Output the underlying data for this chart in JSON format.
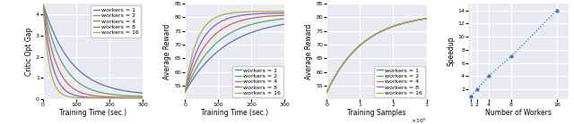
{
  "fig_width": 6.4,
  "fig_height": 1.39,
  "dpi": 100,
  "workers": [
    1,
    2,
    4,
    8,
    16
  ],
  "worker_colors": [
    "#5577aa",
    "#55aa66",
    "#cc6655",
    "#7766cc",
    "#bbaa44"
  ],
  "worker_labels": [
    "workers = 1",
    "workers = 2",
    "workers = 4",
    "workers = 8",
    "workers = 16"
  ],
  "plot1": {
    "xlabel": "Training Time (sec.)",
    "ylabel": "Critic Opt Gap",
    "xlim": [
      0,
      300
    ],
    "ylim": [
      0,
      4.5
    ],
    "yticks": [
      0,
      1,
      2,
      3,
      4
    ],
    "xticks": [
      0,
      100,
      200,
      300
    ]
  },
  "plot2": {
    "xlabel": "Training Time (sec.)",
    "ylabel": "Average Reward",
    "xlim": [
      0,
      300
    ],
    "ylim": [
      50,
      85
    ],
    "yticks": [
      55,
      60,
      65,
      70,
      75,
      80,
      85
    ],
    "xticks": [
      0,
      100,
      200,
      300
    ]
  },
  "plot3": {
    "xlabel": "Training Samples",
    "ylabel": "Average Reward",
    "xlim": [
      0,
      300000.0
    ],
    "ylim": [
      50,
      85
    ],
    "yticks": [
      55,
      60,
      65,
      70,
      75,
      80,
      85
    ],
    "xticks": [
      0,
      100000.0,
      200000.0,
      300000.0
    ]
  },
  "plot4": {
    "xlabel": "Number of Workers",
    "ylabel": "Speedup",
    "xlim": [
      1,
      16
    ],
    "ylim": [
      1,
      14
    ],
    "yticks": [
      2,
      4,
      6,
      8,
      10,
      12,
      14
    ],
    "xticks": [
      1,
      2,
      4,
      8,
      16
    ],
    "speedup_x": [
      1,
      2,
      4,
      8,
      16
    ],
    "speedup_y": [
      1.0,
      2.0,
      4.0,
      7.0,
      14.0
    ]
  },
  "background_color": "#eaeaf2",
  "grid_color": "#ffffff",
  "legend_fontsize": 4.5,
  "axis_fontsize": 5.5,
  "tick_fontsize": 4.5
}
